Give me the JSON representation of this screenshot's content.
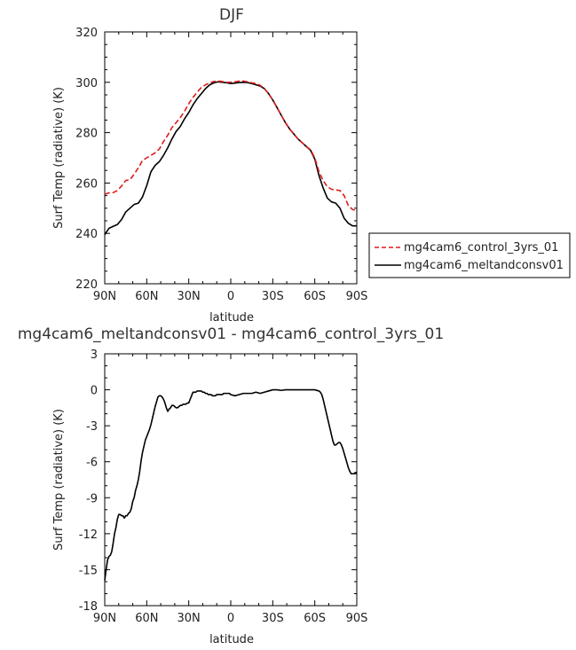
{
  "chart_data": [
    {
      "type": "line",
      "title": "DJF",
      "xlabel": "latitude",
      "ylabel": "Surf Temp (radiative) (K)",
      "ylim": [
        220,
        320
      ],
      "yticks": [
        220,
        240,
        260,
        280,
        300,
        320
      ],
      "xlim": [
        90,
        -90
      ],
      "xticks": [
        90,
        60,
        30,
        0,
        -30,
        -60,
        -90
      ],
      "xticklabels": [
        "90N",
        "60N",
        "30N",
        "0",
        "30S",
        "60S",
        "90S"
      ],
      "x": [
        90,
        87,
        84,
        81,
        78,
        75,
        72,
        69,
        66,
        63,
        60,
        57,
        54,
        51,
        48,
        45,
        42,
        39,
        36,
        33,
        30,
        27,
        24,
        21,
        18,
        15,
        12,
        9,
        6,
        3,
        0,
        -3,
        -6,
        -9,
        -12,
        -15,
        -18,
        -21,
        -24,
        -27,
        -30,
        -33,
        -36,
        -39,
        -42,
        -45,
        -48,
        -51,
        -54,
        -57,
        -60,
        -63,
        -66,
        -69,
        -72,
        -75,
        -78,
        -81,
        -84,
        -87,
        -90
      ],
      "series": [
        {
          "name": "mg4cam6_control_3yrs_01",
          "color": "#dd1c1c",
          "dash": "dashed",
          "values": [
            255.5,
            256.1,
            256.2,
            257.0,
            258.8,
            261.0,
            261.3,
            263.5,
            266.0,
            269.0,
            270.0,
            271.0,
            272.0,
            273.5,
            276.5,
            279.0,
            282.0,
            284.0,
            286.0,
            288.5,
            291.5,
            294.0,
            296.0,
            298.0,
            299.0,
            299.8,
            300.3,
            300.5,
            300.3,
            300.0,
            300.0,
            300.2,
            300.5,
            300.5,
            300.2,
            299.8,
            299.5,
            298.8,
            297.5,
            295.5,
            293.0,
            290.0,
            287.0,
            284.0,
            281.5,
            279.5,
            277.5,
            276.0,
            274.5,
            273.2,
            270.0,
            264.5,
            261.0,
            258.5,
            257.5,
            257.3,
            257.0,
            255.0,
            251.0,
            249.5,
            249.0
          ]
        },
        {
          "name": "mg4cam6_meltandconsv01",
          "color": "#000000",
          "dash": "solid",
          "values": [
            239.5,
            242.0,
            242.8,
            243.5,
            245.5,
            248.5,
            250.0,
            251.5,
            252.0,
            254.5,
            259.0,
            264.5,
            267.0,
            268.5,
            271.0,
            274.0,
            277.5,
            280.5,
            282.5,
            285.5,
            288.0,
            291.0,
            293.5,
            295.5,
            297.5,
            299.0,
            299.8,
            300.2,
            300.0,
            299.8,
            299.5,
            299.7,
            299.9,
            300.0,
            299.9,
            299.5,
            299.0,
            298.5,
            297.5,
            295.5,
            293.0,
            290.0,
            287.0,
            284.0,
            281.5,
            279.5,
            277.5,
            276.0,
            274.5,
            273.0,
            269.5,
            263.0,
            258.0,
            254.0,
            252.5,
            252.0,
            250.0,
            246.0,
            244.0,
            243.0,
            243.0
          ]
        }
      ],
      "legend": "right"
    },
    {
      "type": "line",
      "title": "mg4cam6_meltandconsv01 - mg4cam6_control_3yrs_01",
      "xlabel": "latitude",
      "ylabel": "Surf Temp (radiative) (K)",
      "ylim": [
        -18,
        3
      ],
      "yticks": [
        -18,
        -15,
        -12,
        -9,
        -6,
        -3,
        0,
        3
      ],
      "xlim": [
        90,
        -90
      ],
      "xticks": [
        90,
        60,
        30,
        0,
        -30,
        -60,
        -90
      ],
      "xticklabels": [
        "90N",
        "60N",
        "30N",
        "0",
        "30S",
        "60S",
        "90S"
      ],
      "x": [
        90,
        89,
        88,
        87,
        86,
        85,
        84,
        83,
        82,
        81,
        80,
        79,
        78,
        77,
        76,
        75,
        74,
        73,
        72,
        71,
        70,
        69,
        68,
        67,
        66,
        65,
        64,
        63,
        62,
        61,
        60,
        59,
        58,
        57,
        56,
        55,
        54,
        53,
        52,
        51,
        50,
        49,
        48,
        47,
        46,
        45,
        44,
        43,
        42,
        41,
        40,
        39,
        38,
        37,
        36,
        35,
        34,
        33,
        32,
        31,
        30,
        29,
        28,
        27,
        26,
        25,
        24,
        23,
        22,
        21,
        20,
        19,
        18,
        17,
        16,
        15,
        14,
        13,
        12,
        11,
        10,
        9,
        8,
        7,
        6,
        5,
        4,
        3,
        2,
        1,
        0,
        -3,
        -6,
        -9,
        -12,
        -15,
        -18,
        -21,
        -24,
        -27,
        -30,
        -33,
        -36,
        -39,
        -42,
        -45,
        -48,
        -51,
        -54,
        -57,
        -60,
        -63,
        -64,
        -65,
        -66,
        -67,
        -68,
        -69,
        -70,
        -71,
        -72,
        -73,
        -74,
        -75,
        -76,
        -77,
        -78,
        -79,
        -80,
        -81,
        -82,
        -83,
        -84,
        -85,
        -86,
        -87,
        -88,
        -89,
        -90
      ],
      "series": [
        {
          "name": "",
          "color": "#000000",
          "dash": "solid",
          "values": [
            -15.9,
            -15.0,
            -14.2,
            -13.9,
            -13.8,
            -13.5,
            -12.8,
            -12.0,
            -11.5,
            -10.8,
            -10.4,
            -10.4,
            -10.5,
            -10.5,
            -10.7,
            -10.5,
            -10.5,
            -10.3,
            -10.2,
            -9.9,
            -9.3,
            -9.0,
            -8.4,
            -8.0,
            -7.5,
            -6.8,
            -5.9,
            -5.2,
            -4.7,
            -4.2,
            -3.9,
            -3.6,
            -3.3,
            -2.9,
            -2.4,
            -1.9,
            -1.4,
            -1.0,
            -0.6,
            -0.5,
            -0.5,
            -0.6,
            -0.8,
            -1.1,
            -1.5,
            -1.8,
            -1.6,
            -1.5,
            -1.3,
            -1.3,
            -1.4,
            -1.5,
            -1.5,
            -1.4,
            -1.3,
            -1.3,
            -1.2,
            -1.2,
            -1.2,
            -1.1,
            -1.1,
            -0.8,
            -0.5,
            -0.2,
            -0.2,
            -0.2,
            -0.1,
            -0.1,
            -0.1,
            -0.1,
            -0.2,
            -0.2,
            -0.3,
            -0.3,
            -0.4,
            -0.4,
            -0.4,
            -0.5,
            -0.5,
            -0.5,
            -0.4,
            -0.4,
            -0.4,
            -0.4,
            -0.4,
            -0.3,
            -0.3,
            -0.3,
            -0.3,
            -0.3,
            -0.4,
            -0.5,
            -0.4,
            -0.3,
            -0.3,
            -0.3,
            -0.2,
            -0.3,
            -0.2,
            -0.1,
            0.0,
            0.0,
            -0.05,
            0.0,
            0.0,
            0.0,
            0.0,
            0.0,
            0.0,
            0.0,
            0.0,
            -0.1,
            -0.2,
            -0.4,
            -0.8,
            -1.3,
            -1.8,
            -2.3,
            -2.8,
            -3.3,
            -3.8,
            -4.3,
            -4.6,
            -4.6,
            -4.5,
            -4.4,
            -4.4,
            -4.6,
            -4.9,
            -5.3,
            -5.7,
            -6.1,
            -6.5,
            -6.8,
            -7.0,
            -7.0,
            -7.0,
            -6.9,
            -6.9
          ]
        }
      ],
      "legend": "none"
    }
  ],
  "legend": {
    "items": [
      {
        "label": "mg4cam6_control_3yrs_01",
        "color": "#dd1c1c",
        "dash": "dashed"
      },
      {
        "label": "mg4cam6_meltandconsv01",
        "color": "#000000",
        "dash": "solid"
      }
    ]
  }
}
